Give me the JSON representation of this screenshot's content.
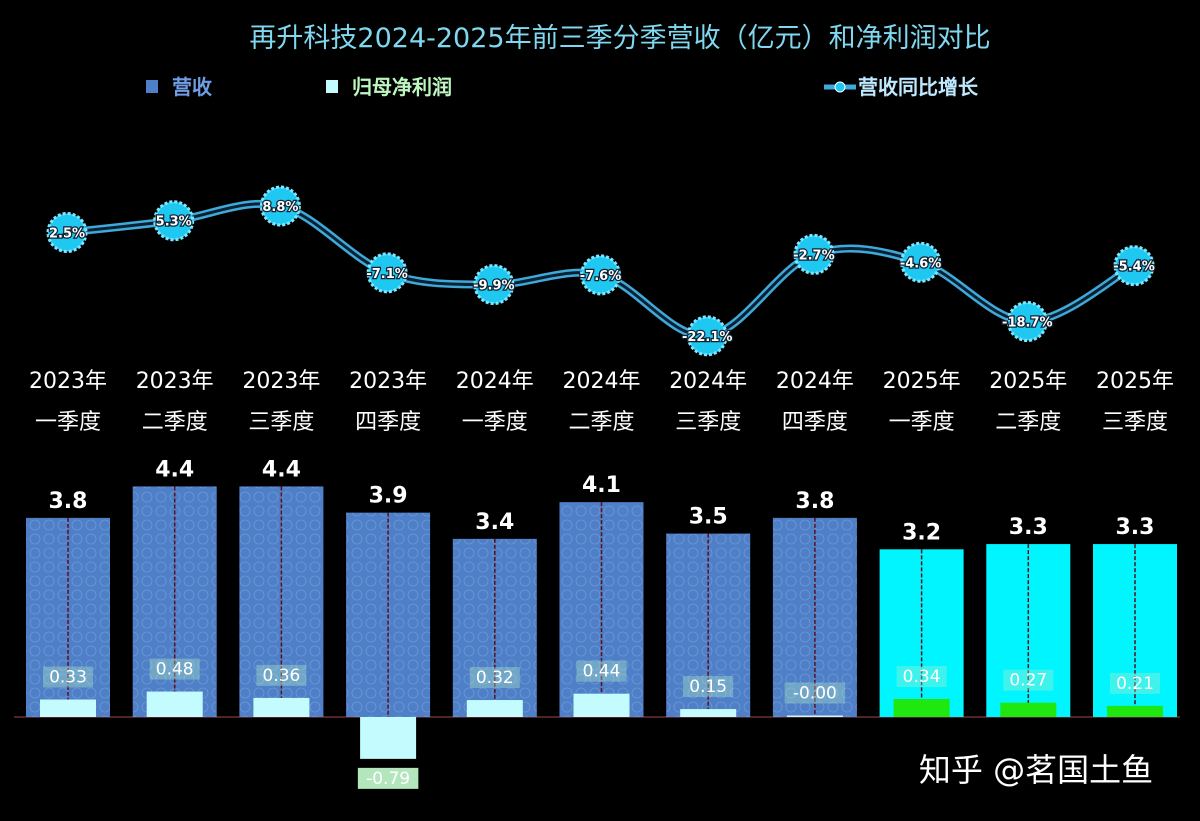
{
  "chart_data": {
    "type": "bar",
    "title": "再升科技2024-2025年前三季分季营收（亿元）和净利润对比",
    "categories": [
      [
        "2023年",
        "一季度"
      ],
      [
        "2023年",
        "二季度"
      ],
      [
        "2023年",
        "三季度"
      ],
      [
        "2023年",
        "四季度"
      ],
      [
        "2024年",
        "一季度"
      ],
      [
        "2024年",
        "二季度"
      ],
      [
        "2024年",
        "三季度"
      ],
      [
        "2024年",
        "四季度"
      ],
      [
        "2025年",
        "一季度"
      ],
      [
        "2025年",
        "二季度"
      ],
      [
        "2025年",
        "三季度"
      ]
    ],
    "series": [
      {
        "name": "营收",
        "type": "bar",
        "values": [
          3.8,
          4.4,
          4.4,
          3.9,
          3.4,
          4.1,
          3.5,
          3.8,
          3.2,
          3.3,
          3.3
        ],
        "labels": [
          "3.8",
          "4.4",
          "4.4",
          "3.9",
          "3.4",
          "4.1",
          "3.5",
          "3.8",
          "3.2",
          "3.3",
          "3.3"
        ]
      },
      {
        "name": "归母净利润",
        "type": "bar",
        "values": [
          0.33,
          0.48,
          0.36,
          -0.79,
          0.32,
          0.44,
          0.15,
          -0.0,
          0.34,
          0.27,
          0.21
        ],
        "labels": [
          "0.33",
          "0.48",
          "0.36",
          "-0.79",
          "0.32",
          "0.44",
          "0.15",
          "-0.00",
          "0.34",
          "0.27",
          "0.21"
        ]
      },
      {
        "name": "营收同比增长",
        "type": "line",
        "values": [
          2.5,
          5.3,
          8.8,
          -7.1,
          -9.9,
          -7.6,
          -22.1,
          -2.7,
          -4.6,
          -18.7,
          -5.4
        ],
        "labels": [
          "2.5%",
          "5.3%",
          "8.8%",
          "-7.1%",
          "-9.9%",
          "-7.6%",
          "-22.1%",
          "-2.7%",
          "-4.6%",
          "-18.7%",
          "-5.4%"
        ]
      }
    ],
    "legend": "top",
    "grid": false
  },
  "colors": {
    "background": "#000000",
    "revenue_2023_2024": "#4f7fc7",
    "revenue_2025": "#00f5ff",
    "net_profit_2023_2024": "#c3fbff",
    "net_profit_2025": "#1ee80f",
    "growth_line": "#3fa9d9",
    "growth_marker": "#1ec8f0"
  },
  "watermark": "知乎 @茗国土鱼"
}
